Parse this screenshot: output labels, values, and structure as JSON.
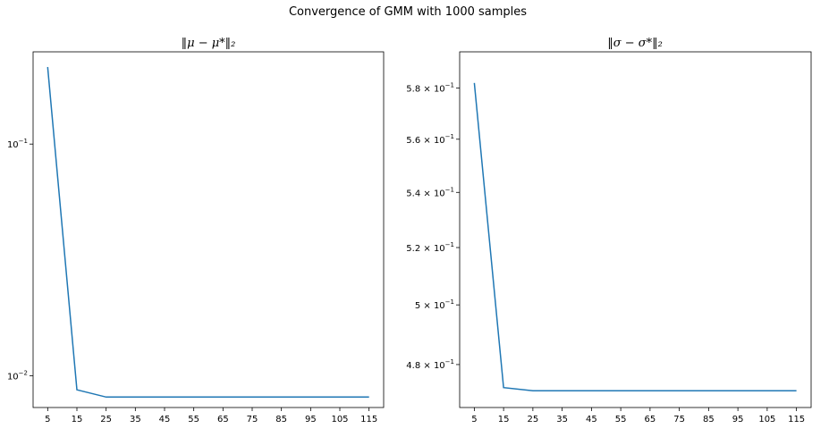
{
  "figure": {
    "suptitle": "Convergence of GMM with 1000 samples"
  },
  "chart_data": [
    {
      "type": "line",
      "title": "‖μ − μ*‖₂",
      "xlabel": "",
      "ylabel": "",
      "yscale": "log",
      "x": [
        5,
        15,
        25,
        35,
        45,
        55,
        65,
        75,
        85,
        95,
        105,
        115
      ],
      "xticks": [
        "5",
        "15",
        "25",
        "35",
        "45",
        "55",
        "65",
        "75",
        "85",
        "95",
        "105",
        "115"
      ],
      "xlim": [
        0,
        120
      ],
      "ylim": [
        0.0073,
        0.25
      ],
      "yticks": [
        {
          "value": 0.1,
          "base": "10",
          "exp": "−1"
        },
        {
          "value": 0.01,
          "base": "10",
          "exp": "−2"
        }
      ],
      "series": [
        {
          "color": "#1f77b4",
          "values": [
            0.215,
            0.0087,
            0.0081,
            0.0081,
            0.0081,
            0.0081,
            0.0081,
            0.0081,
            0.0081,
            0.0081,
            0.0081,
            0.0081
          ]
        }
      ],
      "grid": false
    },
    {
      "type": "line",
      "title": "‖σ − σ*‖₂",
      "xlabel": "",
      "ylabel": "",
      "yscale": "log",
      "x": [
        5,
        15,
        25,
        35,
        45,
        55,
        65,
        75,
        85,
        95,
        105,
        115
      ],
      "xticks": [
        "5",
        "15",
        "25",
        "35",
        "45",
        "55",
        "65",
        "75",
        "85",
        "95",
        "105",
        "115"
      ],
      "xlim": [
        0,
        120
      ],
      "ylim": [
        0.4661,
        0.5945
      ],
      "yticks": [
        {
          "value": 0.58,
          "mant": "5.8",
          "base": "10",
          "exp": "−1"
        },
        {
          "value": 0.56,
          "mant": "5.6",
          "base": "10",
          "exp": "−1"
        },
        {
          "value": 0.54,
          "mant": "5.4",
          "base": "10",
          "exp": "−1"
        },
        {
          "value": 0.52,
          "mant": "5.2",
          "base": "10",
          "exp": "−1"
        },
        {
          "value": 0.5,
          "mant": "5",
          "base": "10",
          "exp": "−1"
        },
        {
          "value": 0.48,
          "mant": "4.8",
          "base": "10",
          "exp": "−1"
        }
      ],
      "series": [
        {
          "color": "#1f77b4",
          "values": [
            0.582,
            0.4725,
            0.4715,
            0.4715,
            0.4715,
            0.4715,
            0.4715,
            0.4715,
            0.4715,
            0.4715,
            0.4715,
            0.4715
          ]
        }
      ],
      "grid": false
    }
  ]
}
